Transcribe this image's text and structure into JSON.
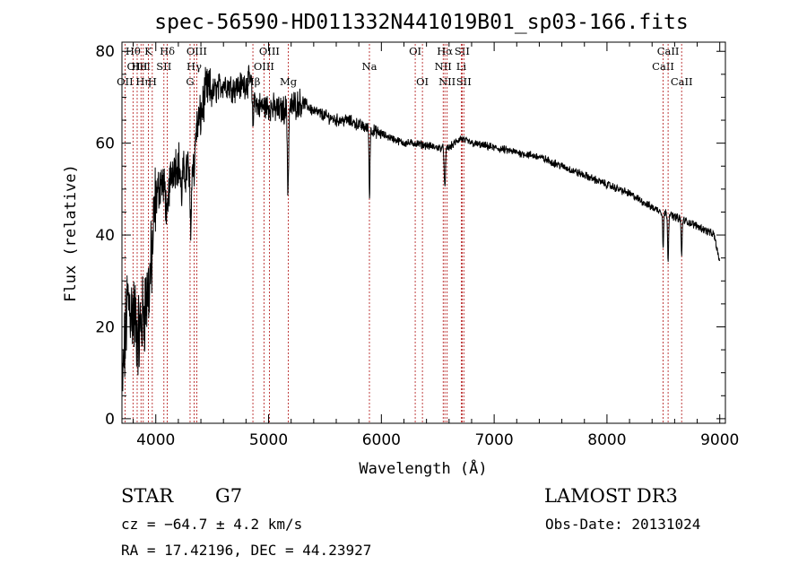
{
  "chart_data": {
    "type": "line",
    "title": "spec-56590-HD011332N441019B01_sp03-166.fits",
    "xlabel": "Wavelength (Å)",
    "ylabel": "Flux (relative)",
    "xlim": [
      3700,
      9050
    ],
    "ylim": [
      -1,
      82
    ],
    "xticks": [
      4000,
      5000,
      6000,
      7000,
      8000,
      9000
    ],
    "yticks": [
      0,
      20,
      40,
      60,
      80
    ],
    "grid": false,
    "continuum": [
      [
        3700,
        5
      ],
      [
        3750,
        26
      ],
      [
        3800,
        23
      ],
      [
        3850,
        18
      ],
      [
        3900,
        24
      ],
      [
        3950,
        30
      ],
      [
        4000,
        48
      ],
      [
        4050,
        52
      ],
      [
        4100,
        48
      ],
      [
        4150,
        55
      ],
      [
        4200,
        56
      ],
      [
        4250,
        53
      ],
      [
        4300,
        56
      ],
      [
        4350,
        62
      ],
      [
        4400,
        66
      ],
      [
        4450,
        72
      ],
      [
        4500,
        71
      ],
      [
        4600,
        73
      ],
      [
        4700,
        72
      ],
      [
        4800,
        73
      ],
      [
        4850,
        74
      ],
      [
        4900,
        68
      ],
      [
        5000,
        68
      ],
      [
        5100,
        67
      ],
      [
        5200,
        68
      ],
      [
        5300,
        69
      ],
      [
        5400,
        67
      ],
      [
        5500,
        66
      ],
      [
        5600,
        65
      ],
      [
        5700,
        65
      ],
      [
        5800,
        64
      ],
      [
        5900,
        63
      ],
      [
        6000,
        62
      ],
      [
        6100,
        61
      ],
      [
        6200,
        60
      ],
      [
        6300,
        60
      ],
      [
        6400,
        59.5
      ],
      [
        6500,
        59
      ],
      [
        6600,
        59
      ],
      [
        6700,
        61
      ],
      [
        6800,
        60
      ],
      [
        7000,
        59
      ],
      [
        7200,
        58
      ],
      [
        7400,
        57
      ],
      [
        7600,
        55
      ],
      [
        7800,
        53
      ],
      [
        8000,
        51
      ],
      [
        8200,
        49
      ],
      [
        8400,
        46
      ],
      [
        8600,
        44
      ],
      [
        8800,
        42
      ],
      [
        8950,
        40
      ],
      [
        9000,
        34
      ]
    ],
    "absorption_features": [
      {
        "x": 4101,
        "depth": 6,
        "width": 10
      },
      {
        "x": 4227,
        "depth": 6,
        "width": 8
      },
      {
        "x": 4310,
        "depth": 14,
        "width": 12
      },
      {
        "x": 4341,
        "depth": 8,
        "width": 8
      },
      {
        "x": 4861,
        "depth": 8,
        "width": 10
      },
      {
        "x": 5172,
        "depth": 18,
        "width": 8
      },
      {
        "x": 5895,
        "depth": 15,
        "width": 6
      },
      {
        "x": 6563,
        "depth": 9,
        "width": 8
      },
      {
        "x": 8498,
        "depth": 8,
        "width": 6
      },
      {
        "x": 8542,
        "depth": 10,
        "width": 6
      },
      {
        "x": 8662,
        "depth": 8,
        "width": 6
      }
    ],
    "line_markers": [
      {
        "x": 3727,
        "label": "OII",
        "row": 3
      },
      {
        "x": 3798,
        "label": "Hθ",
        "row": 1
      },
      {
        "x": 3835,
        "label": "OIII",
        "row": 2
      },
      {
        "x": 3869,
        "label": "HeI",
        "row": 2
      },
      {
        "x": 3889,
        "label": "Hη",
        "row": 3
      },
      {
        "x": 3934,
        "label": "K",
        "row": 1
      },
      {
        "x": 3969,
        "label": "H",
        "row": 3
      },
      {
        "x": 4072,
        "label": "SII",
        "row": 2
      },
      {
        "x": 4102,
        "label": "Hδ",
        "row": 1
      },
      {
        "x": 4304,
        "label": "G",
        "row": 3
      },
      {
        "x": 4340,
        "label": "Hγ",
        "row": 2
      },
      {
        "x": 4363,
        "label": "OIII",
        "row": 1
      },
      {
        "x": 4861,
        "label": "Hβ",
        "row": 3
      },
      {
        "x": 4959,
        "label": "OIII",
        "row": 2
      },
      {
        "x": 5007,
        "label": "OIII",
        "row": 1
      },
      {
        "x": 5175,
        "label": "Mg",
        "row": 3
      },
      {
        "x": 5894,
        "label": "Na",
        "row": 2
      },
      {
        "x": 6300,
        "label": "OI",
        "row": 1
      },
      {
        "x": 6364,
        "label": "OI",
        "row": 3
      },
      {
        "x": 6548,
        "label": "NII",
        "row": 2
      },
      {
        "x": 6563,
        "label": "Hα",
        "row": 1
      },
      {
        "x": 6583,
        "label": "NII",
        "row": 3
      },
      {
        "x": 6708,
        "label": "Li",
        "row": 2
      },
      {
        "x": 6716,
        "label": "SII",
        "row": 1
      },
      {
        "x": 6731,
        "label": "SII",
        "row": 3
      },
      {
        "x": 8498,
        "label": "CaII",
        "row": 2
      },
      {
        "x": 8542,
        "label": "CaII",
        "row": 1
      },
      {
        "x": 8662,
        "label": "CaII",
        "row": 3
      }
    ],
    "colors": {
      "spectrum": "#000000",
      "marker": "#b01010",
      "axes": "#000000"
    }
  },
  "info": {
    "object_type": "STAR",
    "subclass": "G7",
    "survey": "LAMOST DR3",
    "redshift": "cz = −64.7 ± 4.2 km/s",
    "obs_date": "Obs-Date: 20131024",
    "coords": "RA =  17.42196, DEC =  44.23927"
  }
}
